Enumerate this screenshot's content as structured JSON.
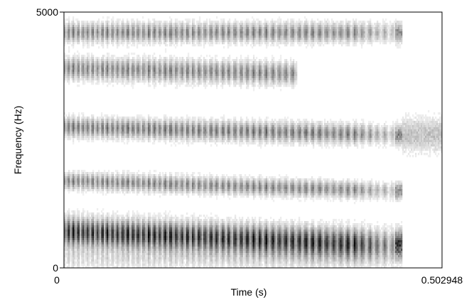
{
  "chart_data": {
    "type": "heatmap",
    "subtype": "spectrogram",
    "title": "",
    "xlabel": "Time (s)",
    "ylabel": "Frequency (Hz)",
    "xlim": [
      0,
      0.502948
    ],
    "ylim": [
      0,
      5000
    ],
    "x_tick_labels": [
      "0",
      "0.502948"
    ],
    "y_tick_labels": [
      "0",
      "5000"
    ],
    "colormap": "grayscale (darker = more energy)",
    "voicing_end_s": 0.44,
    "formant_bands": [
      {
        "name": "F1",
        "start": [
          0.0,
          700
        ],
        "end": [
          0.44,
          450
        ],
        "bandwidth_hz": 520,
        "strength": 0.95
      },
      {
        "name": "F2",
        "start": [
          0.0,
          1700
        ],
        "end": [
          0.44,
          1500
        ],
        "bandwidth_hz": 300,
        "strength": 0.55
      },
      {
        "name": "F3",
        "start": [
          0.0,
          2750
        ],
        "end": [
          0.44,
          2600
        ],
        "bandwidth_hz": 350,
        "strength": 0.6
      },
      {
        "name": "F4",
        "start": [
          0.0,
          3900
        ],
        "end": [
          0.3,
          3800
        ],
        "bandwidth_hz": 400,
        "strength": 0.55
      },
      {
        "name": "F5",
        "start": [
          0.0,
          4600
        ],
        "end": [
          0.44,
          4600
        ],
        "bandwidth_hz": 350,
        "strength": 0.55
      },
      {
        "name": "frication",
        "start": [
          0.45,
          2600
        ],
        "end": [
          0.5,
          2600
        ],
        "bandwidth_hz": 600,
        "strength": 0.3
      }
    ]
  },
  "colors": {
    "background": "#ffffff",
    "frame": "#000000",
    "ink": "#000000"
  }
}
